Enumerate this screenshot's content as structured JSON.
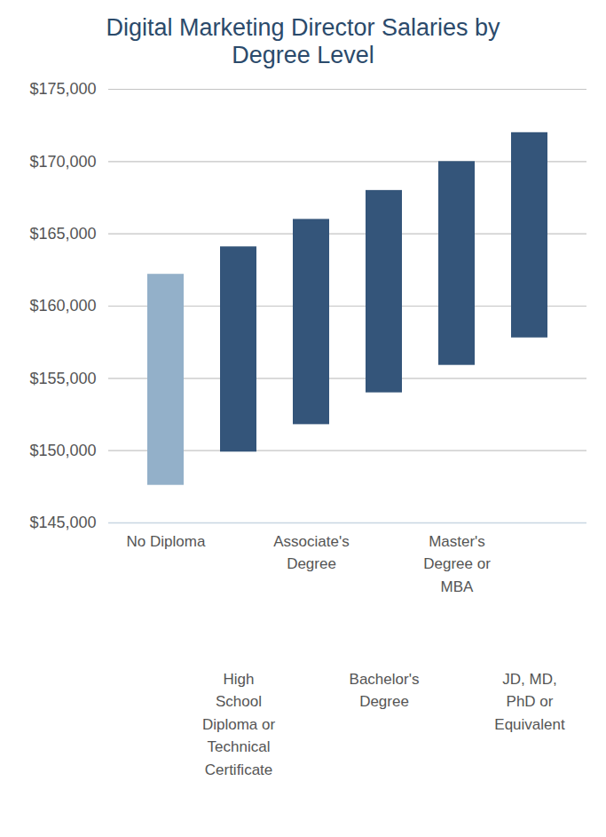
{
  "chart_data": {
    "type": "bar",
    "title": "Digital Marketing Director Salaries by Degree Level",
    "categories": [
      "No Diploma",
      "High School Diploma or Technical Certificate",
      "Associate's Degree",
      "Bachelor's Degree",
      "Master's Degree or MBA",
      "JD, MD, PhD or Equivalent"
    ],
    "low": [
      147600,
      149900,
      151800,
      154000,
      155900,
      157800
    ],
    "high": [
      162200,
      164100,
      166000,
      168000,
      170000,
      172000
    ],
    "colors": [
      "#93b0c9",
      "#34557a",
      "#34557a",
      "#34557a",
      "#34557a",
      "#34557a"
    ],
    "ylim": [
      145000,
      175000
    ],
    "yticks": [
      {
        "value": 145000,
        "label": "$145,000"
      },
      {
        "value": 150000,
        "label": "$150,000"
      },
      {
        "value": 155000,
        "label": "$155,000"
      },
      {
        "value": 160000,
        "label": "$160,000"
      },
      {
        "value": 165000,
        "label": "$165,000"
      },
      {
        "value": 170000,
        "label": "$170,000"
      },
      {
        "value": 175000,
        "label": "$175,000"
      }
    ],
    "grid": true
  }
}
